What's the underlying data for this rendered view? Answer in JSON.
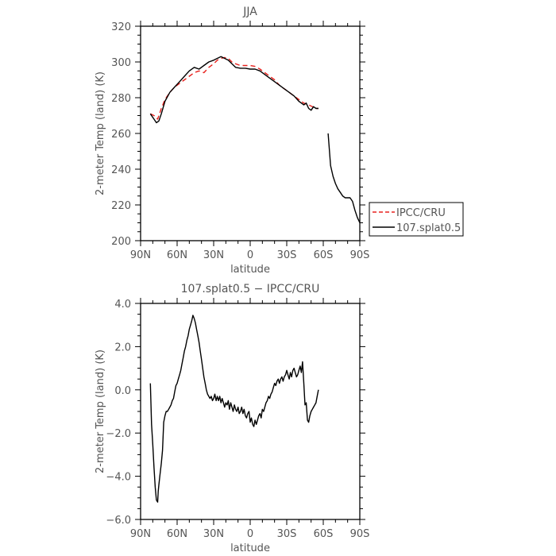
{
  "chart_data": [
    {
      "type": "line",
      "title": "JJA",
      "xlabel": "latitude",
      "ylabel": "2-meter Temp (land) (K)",
      "xlim": [
        90,
        -90
      ],
      "ylim": [
        200,
        320
      ],
      "xticks": [
        90,
        60,
        30,
        0,
        -30,
        -60,
        -90
      ],
      "xtick_labels": [
        "90N",
        "60N",
        "30N",
        "0",
        "30S",
        "60S",
        "90S"
      ],
      "yticks": [
        200,
        220,
        240,
        260,
        280,
        300,
        320
      ],
      "ytick_labels": [
        "200",
        "220",
        "240",
        "260",
        "280",
        "300",
        "320"
      ],
      "legend": {
        "placement": "right",
        "entries": [
          "IPCC/CRU",
          "107.splat0.5"
        ]
      },
      "series": [
        {
          "name": "IPCC/CRU",
          "color": "#e8221e",
          "dash": "dashed",
          "x": [
            82,
            79,
            76,
            73,
            70,
            66,
            62,
            58,
            54,
            50,
            46,
            42,
            38,
            34,
            30,
            27,
            24,
            21,
            18,
            15,
            12,
            8,
            4,
            0,
            -4,
            -8,
            -12,
            -16,
            -20,
            -24,
            -28,
            -32,
            -36,
            -40,
            -44,
            -48,
            -51,
            -54,
            -56
          ],
          "y": [
            271,
            270,
            268,
            274,
            279,
            283,
            286,
            288,
            290,
            292,
            294,
            295,
            294,
            297,
            299,
            301,
            302,
            302.5,
            302,
            300,
            299,
            298,
            298,
            298,
            297.5,
            296,
            294,
            292,
            290,
            287,
            285,
            283,
            281,
            279,
            277,
            276,
            275,
            274,
            274
          ]
        },
        {
          "name": "107.splat0.5",
          "color": "#000000",
          "dash": "solid",
          "x": [
            82,
            79,
            77,
            75,
            73,
            70,
            66,
            62,
            58,
            54,
            50,
            46,
            42,
            38,
            34,
            30,
            27,
            24,
            21,
            18,
            15,
            12,
            8,
            4,
            0,
            -4,
            -8,
            -12,
            -16,
            -20,
            -24,
            -28,
            -32,
            -36,
            -40,
            -44,
            -46,
            -48,
            -50,
            -52,
            -54,
            -56
          ],
          "y": [
            271,
            268,
            266,
            267,
            271,
            278,
            283,
            286,
            289,
            292,
            295,
            297,
            296,
            298,
            300,
            301,
            302,
            303,
            302,
            301,
            299,
            297,
            296.5,
            296.5,
            296,
            296,
            295,
            293,
            291,
            289,
            287,
            285,
            283,
            281,
            278,
            276,
            277,
            274,
            273,
            275,
            274,
            274
          ],
          "segments": [
            {
              "x": [
                -64,
                -66,
                -68,
                -70,
                -72,
                -74,
                -76,
                -78,
                -80,
                -82,
                -84,
                -86,
                -88,
                -90
              ],
              "y": [
                260,
                242,
                236,
                232,
                229,
                227,
                225,
                224,
                224,
                224,
                222,
                217,
                213,
                210
              ]
            }
          ]
        }
      ]
    },
    {
      "type": "line",
      "title": "107.splat0.5 − IPCC/CRU",
      "xlabel": "latitude",
      "ylabel": "2-meter Temp (land) (K)",
      "xlim": [
        90,
        -90
      ],
      "ylim": [
        -6,
        4
      ],
      "xticks": [
        90,
        60,
        30,
        0,
        -30,
        -60,
        -90
      ],
      "xtick_labels": [
        "90N",
        "60N",
        "30N",
        "0",
        "30S",
        "60S",
        "90S"
      ],
      "yticks": [
        -6,
        -4,
        -2,
        0,
        2,
        4
      ],
      "ytick_labels": [
        "−6.0",
        "−4.0",
        "−2.0",
        "0.0",
        "2.0",
        "4.0"
      ],
      "series": [
        {
          "color": "#000000",
          "dash": "solid",
          "x": [
            82,
            81,
            80,
            79,
            78,
            77,
            76,
            75.5,
            75,
            74,
            73,
            72,
            71,
            70,
            69,
            68,
            67,
            66,
            65,
            64,
            63,
            62,
            61,
            60,
            59,
            58,
            57,
            56,
            55,
            54,
            53,
            52,
            51,
            50,
            49,
            48,
            47,
            46,
            45,
            44,
            43,
            42,
            41,
            40,
            39,
            38,
            37,
            36,
            35,
            34,
            33,
            32,
            31,
            30,
            29,
            28,
            27,
            26,
            25,
            24,
            23,
            22,
            21,
            20,
            19,
            18,
            17,
            16,
            15,
            14,
            13,
            12,
            11,
            10,
            9,
            8,
            7,
            6,
            5,
            4,
            3,
            2,
            1,
            0,
            -1,
            -2,
            -3,
            -4,
            -5,
            -6,
            -7,
            -8,
            -9,
            -10,
            -11,
            -12,
            -13,
            -14,
            -15,
            -16,
            -17,
            -18,
            -19,
            -20,
            -21,
            -22,
            -23,
            -24,
            -25,
            -26,
            -27,
            -28,
            -29,
            -30,
            -31,
            -32,
            -33,
            -34,
            -35,
            -36,
            -37,
            -38,
            -39,
            -40,
            -41,
            -42,
            -43,
            -44,
            -45,
            -46,
            -47,
            -48,
            -49,
            -50,
            -51,
            -52,
            -53,
            -54,
            -55,
            -56
          ],
          "y": [
            0.3,
            -1.6,
            -2.5,
            -3.6,
            -4.5,
            -5.1,
            -5.2,
            -4.7,
            -4.4,
            -3.9,
            -3.4,
            -2.8,
            -1.5,
            -1.2,
            -1.0,
            -1.0,
            -0.9,
            -0.8,
            -0.7,
            -0.5,
            -0.4,
            -0.1,
            0.2,
            0.3,
            0.5,
            0.7,
            0.9,
            1.2,
            1.5,
            1.8,
            2.0,
            2.3,
            2.5,
            2.8,
            3.0,
            3.2,
            3.45,
            3.3,
            3.1,
            2.8,
            2.5,
            2.2,
            1.8,
            1.4,
            1.0,
            0.6,
            0.3,
            0.0,
            -0.2,
            -0.3,
            -0.4,
            -0.3,
            -0.5,
            -0.4,
            -0.2,
            -0.5,
            -0.3,
            -0.5,
            -0.3,
            -0.6,
            -0.4,
            -0.6,
            -0.8,
            -0.6,
            -0.7,
            -0.5,
            -0.9,
            -0.6,
            -0.8,
            -1.0,
            -0.7,
            -0.9,
            -1.0,
            -0.8,
            -1.1,
            -1.0,
            -0.8,
            -1.1,
            -0.9,
            -1.2,
            -1.3,
            -1.1,
            -1.0,
            -1.5,
            -1.3,
            -1.6,
            -1.7,
            -1.4,
            -1.6,
            -1.4,
            -1.2,
            -1.1,
            -1.3,
            -0.9,
            -1.0,
            -0.8,
            -0.6,
            -0.5,
            -0.3,
            -0.4,
            -0.2,
            -0.1,
            0.1,
            0.3,
            0.2,
            0.4,
            0.5,
            0.3,
            0.5,
            0.6,
            0.4,
            0.6,
            0.7,
            0.9,
            0.7,
            0.5,
            0.8,
            0.6,
            0.9,
            1.0,
            0.8,
            0.6,
            0.7,
            0.9,
            1.1,
            0.8,
            1.3,
            0.3,
            -0.7,
            -0.6,
            -1.4,
            -1.5,
            -1.2,
            -1.0,
            -0.9,
            -0.8,
            -0.7,
            -0.6,
            -0.3,
            0.0
          ]
        }
      ]
    }
  ]
}
